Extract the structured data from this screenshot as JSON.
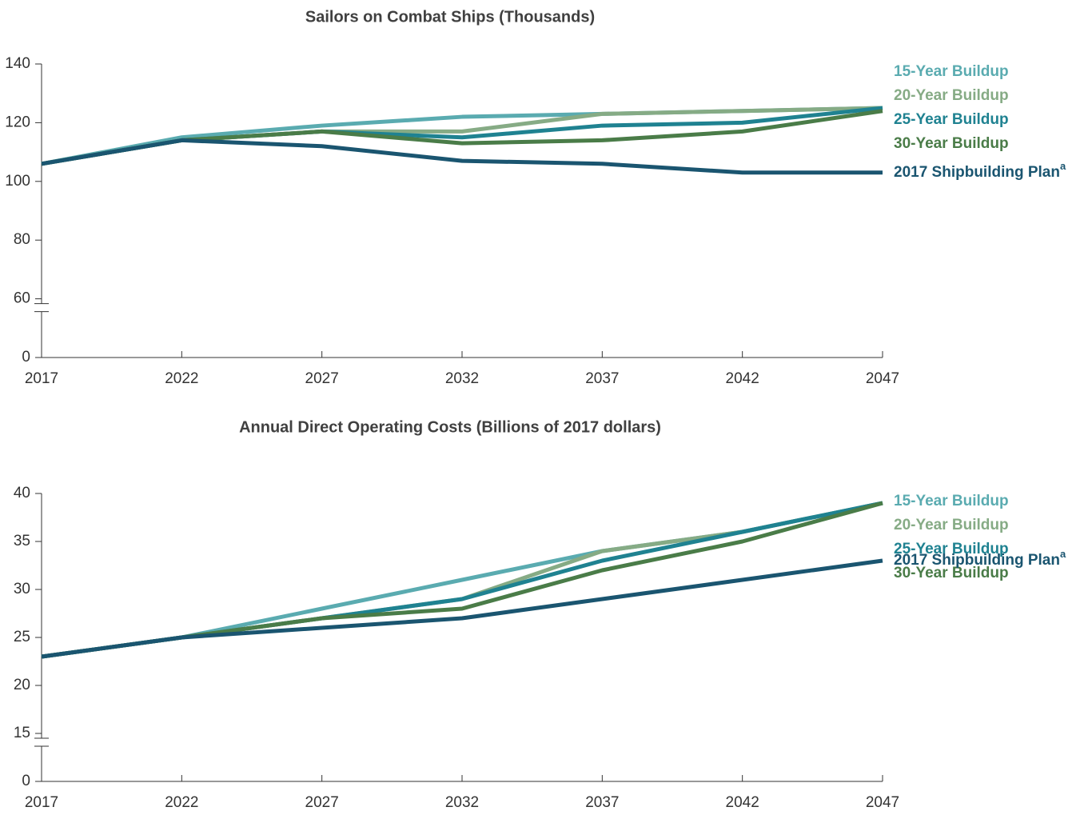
{
  "chart_data": [
    {
      "type": "line",
      "title": "Sailors on Combat Ships (Thousands)",
      "x": [
        2017,
        2022,
        2027,
        2032,
        2037,
        2042,
        2047
      ],
      "xlim": [
        2017,
        2047
      ],
      "xticks": [
        2017,
        2022,
        2027,
        2032,
        2037,
        2042,
        2047
      ],
      "ylim": [
        0,
        140
      ],
      "yticks": [
        0,
        60,
        80,
        100,
        120,
        140
      ],
      "y_break": [
        0,
        60
      ],
      "series": [
        {
          "name": "15-Year Buildup",
          "color": "#5aabb0",
          "values": [
            106,
            115,
            119,
            122,
            123,
            124,
            125
          ]
        },
        {
          "name": "20-Year Buildup",
          "color": "#86ab85",
          "values": [
            106,
            114,
            117,
            117,
            123,
            124,
            125
          ]
        },
        {
          "name": "25-Year Buildup",
          "color": "#1f8291",
          "values": [
            106,
            114,
            117,
            115,
            119,
            120,
            125
          ]
        },
        {
          "name": "30-Year Buildup",
          "color": "#4a7c48",
          "values": [
            106,
            114,
            117,
            113,
            114,
            117,
            124
          ]
        },
        {
          "name": "2017 Shipbuilding Plan",
          "note": "a",
          "color": "#1a5570",
          "values": [
            106,
            114,
            112,
            107,
            106,
            103,
            103
          ]
        }
      ]
    },
    {
      "type": "line",
      "title": "Annual Direct Operating Costs (Billions of 2017 dollars)",
      "x": [
        2017,
        2022,
        2027,
        2032,
        2037,
        2042,
        2047
      ],
      "xlim": [
        2017,
        2047
      ],
      "xticks": [
        2017,
        2022,
        2027,
        2032,
        2037,
        2042,
        2047
      ],
      "ylim": [
        0,
        40
      ],
      "yticks": [
        0,
        15,
        20,
        25,
        30,
        35,
        40
      ],
      "y_break": [
        0,
        15
      ],
      "series": [
        {
          "name": "15-Year Buildup",
          "color": "#5aabb0",
          "values": [
            23,
            25,
            28,
            31,
            34,
            36,
            39
          ]
        },
        {
          "name": "20-Year Buildup",
          "color": "#86ab85",
          "values": [
            23,
            25,
            27,
            29,
            34,
            36,
            39
          ]
        },
        {
          "name": "25-Year Buildup",
          "color": "#1f8291",
          "values": [
            23,
            25,
            27,
            29,
            33,
            36,
            39
          ]
        },
        {
          "name": "30-Year Buildup",
          "color": "#4a7c48",
          "values": [
            23,
            25,
            27,
            28,
            32,
            35,
            39
          ]
        },
        {
          "name": "2017 Shipbuilding Plan",
          "note": "a",
          "color": "#1a5570",
          "values": [
            23,
            25,
            26,
            27,
            29,
            31,
            33
          ]
        }
      ]
    }
  ]
}
